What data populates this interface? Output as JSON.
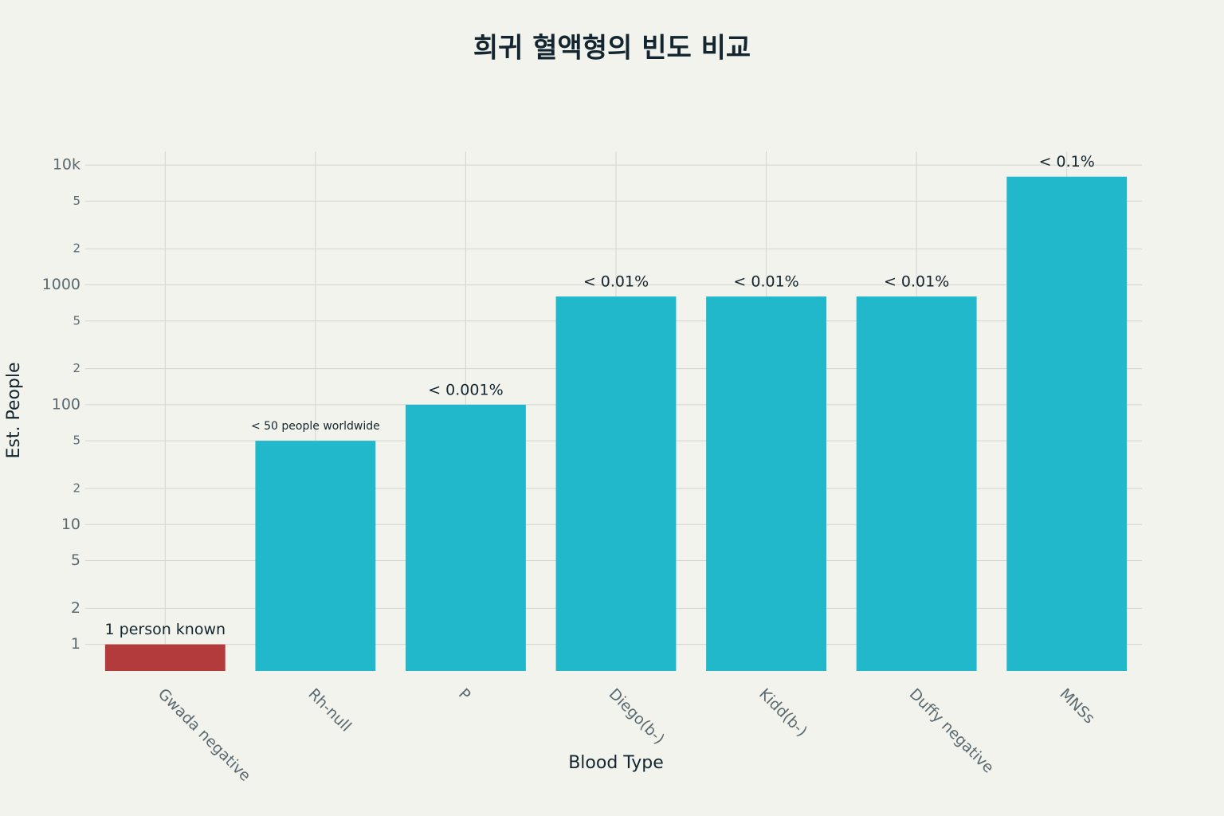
{
  "chart_data": {
    "type": "bar",
    "title": "희귀 혈액형의 빈도 비교",
    "x_label": "Blood Type",
    "y_label": "Est. People",
    "categories": [
      "Gwada negative",
      "Rh-null",
      "P",
      "Diego(b-)",
      "Kidd(b-)",
      "Duffy negative",
      "MNSs"
    ],
    "values": [
      1,
      50,
      100,
      800,
      800,
      800,
      8000
    ],
    "annotations": [
      "1 person known",
      "< 50 people worldwide",
      "< 0.001%",
      "< 0.01%",
      "< 0.01%",
      "< 0.01%",
      "< 0.1%"
    ],
    "colors": [
      "#b33b3b",
      "#21b8cc",
      "#21b8cc",
      "#21b8cc",
      "#21b8cc",
      "#21b8cc",
      "#21b8cc"
    ],
    "log_y": true,
    "grid": true,
    "ylim": [
      0.6,
      13000
    ],
    "yticks": [
      1,
      2,
      5,
      10,
      {
        "value": 20,
        "label": "2"
      },
      {
        "value": 50,
        "label": "5"
      },
      100,
      {
        "value": 200,
        "label": "2"
      },
      {
        "value": 500,
        "label": "5"
      },
      1000,
      {
        "value": 2000,
        "label": "2"
      },
      {
        "value": 5000,
        "label": "5"
      },
      {
        "value": 10000,
        "label": "10k"
      }
    ]
  }
}
